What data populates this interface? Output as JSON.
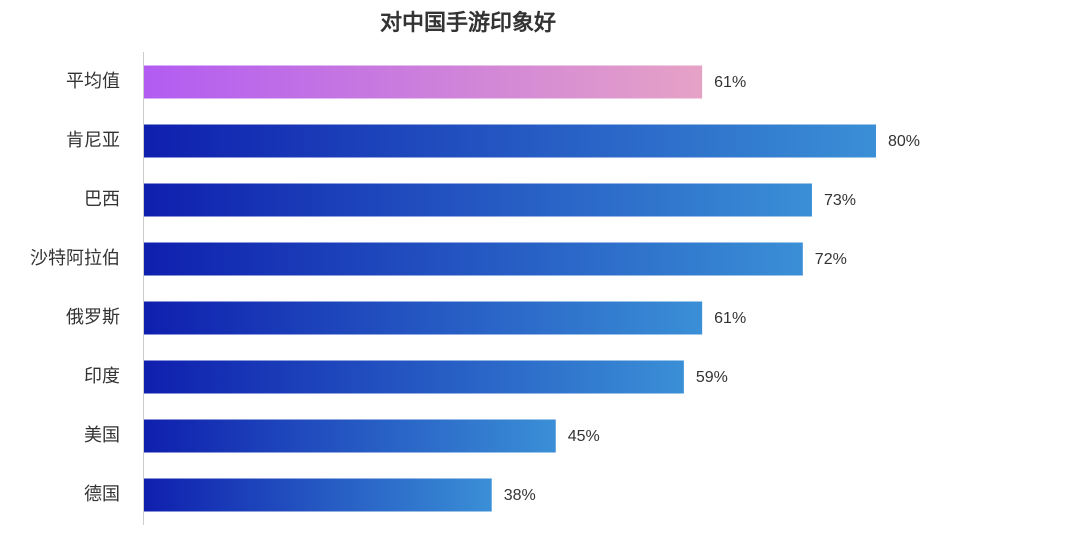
{
  "chart_data": {
    "type": "hbar",
    "title": "对中国手游印象好",
    "categories": [
      "平均值",
      "肯尼亚",
      "巴西",
      "沙特阿拉伯",
      "俄罗斯",
      "印度",
      "美国",
      "德国"
    ],
    "values": [
      61,
      80,
      73,
      72,
      61,
      59,
      45,
      38
    ],
    "value_labels": [
      "61%",
      "80%",
      "73%",
      "72%",
      "61%",
      "59%",
      "45%",
      "38%"
    ],
    "colors": [
      [
        "#b25cf2",
        "#e6a2c6"
      ],
      [
        "#0f1fae",
        "#3a8fd6"
      ],
      [
        "#0f1fae",
        "#3a8fd6"
      ],
      [
        "#0f1fae",
        "#3a8fd6"
      ],
      [
        "#0f1fae",
        "#3a8fd6"
      ],
      [
        "#0f1fae",
        "#3a8fd6"
      ],
      [
        "#0f1fae",
        "#3a8fd6"
      ],
      [
        "#0f1fae",
        "#3a8fd6"
      ]
    ],
    "xlim": [
      0,
      100
    ]
  }
}
